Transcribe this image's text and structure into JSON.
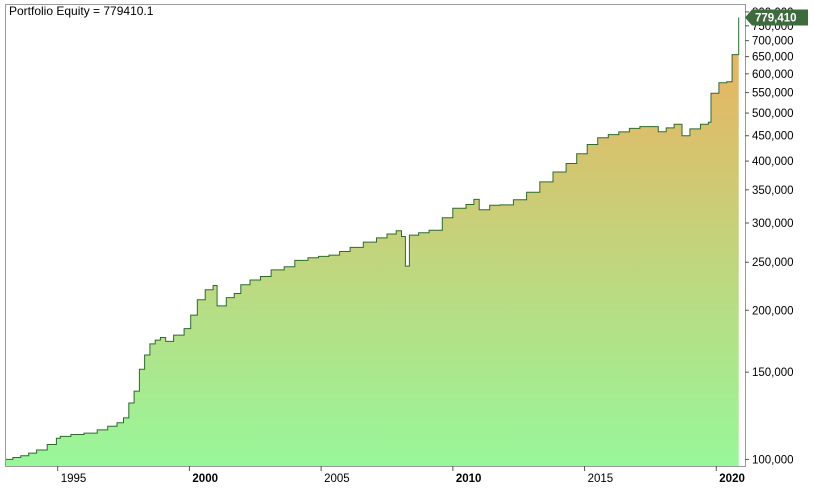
{
  "chart_data": {
    "type": "area",
    "title": "Portfolio Equity = 779410.1",
    "scale": "log",
    "ylim": [
      97000,
      830000
    ],
    "xlim": [
      1993.0,
      2020.9
    ],
    "y_ticks": [
      {
        "value": 100000,
        "label": "100,000"
      },
      {
        "value": 150000,
        "label": "150,000"
      },
      {
        "value": 200000,
        "label": "200,000"
      },
      {
        "value": 250000,
        "label": "250,000"
      },
      {
        "value": 300000,
        "label": "300,000"
      },
      {
        "value": 350000,
        "label": "350,000"
      },
      {
        "value": 400000,
        "label": "400,000"
      },
      {
        "value": 450000,
        "label": "450,000"
      },
      {
        "value": 500000,
        "label": "500,000"
      },
      {
        "value": 550000,
        "label": "550,000"
      },
      {
        "value": 600000,
        "label": "600,000"
      },
      {
        "value": 650000,
        "label": "650,000"
      },
      {
        "value": 700000,
        "label": "700,000"
      },
      {
        "value": 750000,
        "label": "750,000"
      },
      {
        "value": 800000,
        "label": "800,000"
      }
    ],
    "x_ticks": [
      {
        "value": 1995,
        "label": "1995",
        "bold": false
      },
      {
        "value": 2000,
        "label": "2000",
        "bold": true
      },
      {
        "value": 2005,
        "label": "2005",
        "bold": false
      },
      {
        "value": 2010,
        "label": "2010",
        "bold": true
      },
      {
        "value": 2015,
        "label": "2015",
        "bold": false
      },
      {
        "value": 2020,
        "label": "2020",
        "bold": true
      }
    ],
    "last_value_label": "779,410",
    "colors": {
      "line": "#2e6b2e",
      "fill_top": "#f0ae5c",
      "fill_bottom": "#98f79a",
      "tag": "#3d6b3d",
      "frame": "#9a9a9a"
    },
    "series": [
      {
        "points": [
          [
            1993.0,
            100000
          ],
          [
            1993.3,
            100900
          ],
          [
            1993.6,
            101700
          ],
          [
            1993.9,
            103000
          ],
          [
            1994.2,
            104500
          ],
          [
            1994.6,
            107200
          ],
          [
            1994.95,
            110300
          ],
          [
            1995.1,
            111300
          ],
          [
            1995.5,
            112300
          ],
          [
            1996.0,
            113000
          ],
          [
            1996.5,
            114700
          ],
          [
            1996.9,
            116700
          ],
          [
            1997.25,
            118600
          ],
          [
            1997.5,
            121300
          ],
          [
            1997.7,
            130000
          ],
          [
            1997.9,
            137400
          ],
          [
            1998.1,
            152000
          ],
          [
            1998.3,
            162500
          ],
          [
            1998.5,
            171100
          ],
          [
            1998.7,
            174100
          ],
          [
            1998.9,
            176200
          ],
          [
            1999.1,
            173100
          ],
          [
            1999.4,
            178200
          ],
          [
            1999.8,
            183700
          ],
          [
            2000.05,
            195600
          ],
          [
            2000.3,
            210000
          ],
          [
            2000.6,
            220000
          ],
          [
            2000.9,
            224400
          ],
          [
            2001.05,
            204100
          ],
          [
            2001.4,
            212100
          ],
          [
            2001.7,
            216200
          ],
          [
            2001.95,
            225200
          ],
          [
            2002.3,
            230200
          ],
          [
            2002.7,
            234000
          ],
          [
            2003.1,
            241300
          ],
          [
            2003.6,
            244800
          ],
          [
            2004.0,
            252200
          ],
          [
            2004.5,
            255300
          ],
          [
            2004.9,
            256900
          ],
          [
            2005.3,
            258500
          ],
          [
            2005.7,
            262800
          ],
          [
            2006.1,
            267900
          ],
          [
            2006.6,
            274500
          ],
          [
            2007.1,
            280000
          ],
          [
            2007.5,
            285000
          ],
          [
            2007.85,
            289300
          ],
          [
            2008.05,
            281800
          ],
          [
            2008.2,
            245600
          ],
          [
            2008.35,
            283600
          ],
          [
            2008.7,
            286800
          ],
          [
            2009.1,
            290000
          ],
          [
            2009.6,
            307500
          ],
          [
            2010.0,
            321400
          ],
          [
            2010.5,
            327000
          ],
          [
            2010.8,
            334800
          ],
          [
            2011.0,
            319200
          ],
          [
            2011.4,
            325800
          ],
          [
            2011.8,
            326300
          ],
          [
            2012.3,
            334200
          ],
          [
            2012.8,
            346000
          ],
          [
            2013.3,
            363200
          ],
          [
            2013.8,
            380300
          ],
          [
            2014.3,
            395500
          ],
          [
            2014.7,
            413700
          ],
          [
            2015.1,
            432100
          ],
          [
            2015.5,
            445800
          ],
          [
            2015.9,
            452500
          ],
          [
            2016.3,
            458100
          ],
          [
            2016.7,
            465700
          ],
          [
            2017.1,
            469500
          ],
          [
            2017.5,
            469500
          ],
          [
            2017.8,
            458300
          ],
          [
            2018.1,
            466800
          ],
          [
            2018.4,
            474500
          ],
          [
            2018.7,
            449800
          ],
          [
            2019.0,
            464600
          ],
          [
            2019.4,
            474500
          ],
          [
            2019.7,
            479100
          ],
          [
            2019.8,
            548200
          ],
          [
            2020.1,
            575600
          ],
          [
            2020.4,
            578100
          ],
          [
            2020.6,
            656200
          ],
          [
            2020.85,
            779410
          ]
        ]
      }
    ]
  }
}
